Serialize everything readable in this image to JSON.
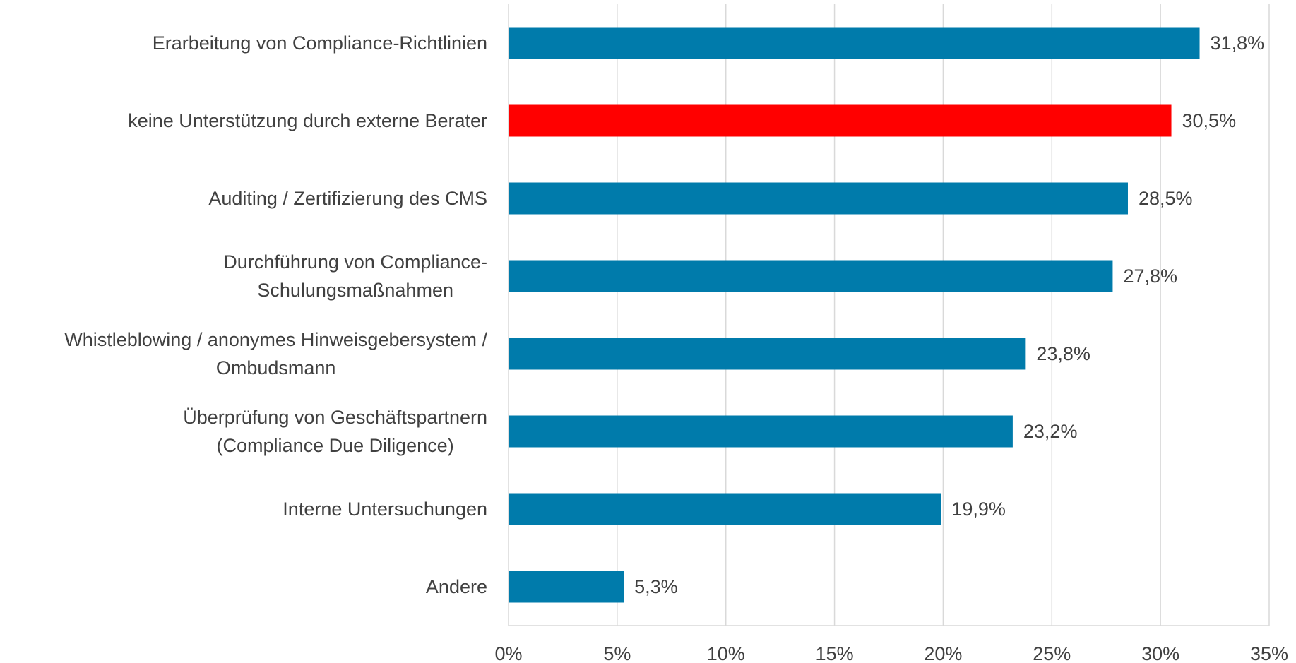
{
  "chart_data": {
    "type": "bar",
    "orientation": "horizontal",
    "categories": [
      "Erarbeitung von Compliance-Richtlinien",
      "keine Unterstützung durch externe Berater",
      "Auditing / Zertifizierung des CMS",
      "Durchführung von Compliance-\nSchulungsmaßnahmen",
      "Whistleblowing / anonymes Hinweisgebersystem /\nOmbudsmann",
      "Überprüfung von Geschäftspartnern\n(Compliance Due Diligence)",
      "Interne Untersuchungen",
      "Andere"
    ],
    "values": [
      31.8,
      30.5,
      28.5,
      27.8,
      23.8,
      23.2,
      19.9,
      5.3
    ],
    "value_labels": [
      "31,8%",
      "30,5%",
      "28,5%",
      "27,8%",
      "23,8%",
      "23,2%",
      "19,9%",
      "5,3%"
    ],
    "colors": [
      "#007bab",
      "#ff0000",
      "#007bab",
      "#007bab",
      "#007bab",
      "#007bab",
      "#007bab",
      "#007bab"
    ],
    "xlim": [
      0,
      35
    ],
    "xticks": [
      {
        "value": 0,
        "label": "0%"
      },
      {
        "value": 5,
        "label": "5%"
      },
      {
        "value": 10,
        "label": "10%"
      },
      {
        "value": 15,
        "label": "15%"
      },
      {
        "value": 20,
        "label": "20%"
      },
      {
        "value": 25,
        "label": "25%"
      },
      {
        "value": 30,
        "label": "30%"
      },
      {
        "value": 35,
        "label": "35%"
      }
    ],
    "grid": true
  }
}
